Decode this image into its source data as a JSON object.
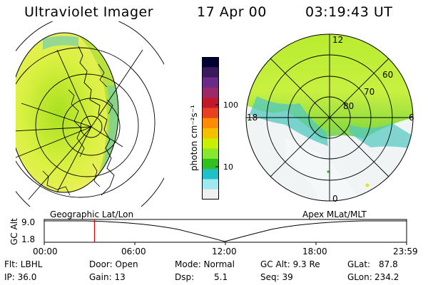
{
  "header": {
    "instrument": "Ultraviolet Imager",
    "date": "17 Apr 00",
    "time": "03:19:43 UT"
  },
  "left_panel": {
    "caption": "Geographic Lat/Lon"
  },
  "right_panel": {
    "caption": "Apex MLat/MLT",
    "mlt_labels": [
      "12",
      "18",
      "6",
      "0"
    ],
    "lat_labels": [
      "60",
      "70",
      "80"
    ]
  },
  "colorbar": {
    "unit_label": "photon cm⁻²s⁻¹",
    "ticks": [
      "100",
      "10"
    ],
    "colors": [
      "#000030",
      "#3a1a5a",
      "#6a2a8a",
      "#9a2a6a",
      "#c01a2a",
      "#e84020",
      "#ff8c00",
      "#f4c000",
      "#c8f000",
      "#88e830",
      "#30c020",
      "#20c0c8",
      "#a0e8f0",
      "#f0f0f0"
    ]
  },
  "timeline": {
    "axis_label": "GC Alt",
    "y_ticks": [
      "9.0",
      "1.8"
    ],
    "x_ticks": [
      "00:00",
      "06:00",
      "12:00",
      "18:00",
      "23:59"
    ],
    "marker_hours": 3.33
  },
  "status": {
    "flt": "Flt: LBHL",
    "ip": "IP: 36.0",
    "door": "Door: Open",
    "gain": "Gain: 13",
    "mode": "Mode: Normal",
    "dsp_label": "Dsp:",
    "dsp_value": "5.1",
    "gcalt": "GC Alt: 9.3 Re",
    "seq": "Seq: 39",
    "glat_label": "GLat:",
    "glat_value": "87.8",
    "glon_label": "GLon:",
    "glon_value": "234.2"
  }
}
